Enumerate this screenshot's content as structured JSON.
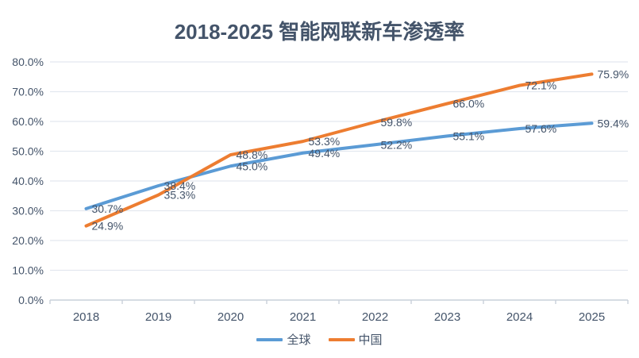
{
  "chart_data": {
    "type": "line",
    "title": "2018-2025 智能网联新车渗透率",
    "categories": [
      "2018",
      "2019",
      "2020",
      "2021",
      "2022",
      "2023",
      "2024",
      "2025"
    ],
    "series": [
      {
        "name": "全球",
        "color": "#5B9BD5",
        "values": [
          30.7,
          38.4,
          45.0,
          49.4,
          52.2,
          55.1,
          57.6,
          59.4
        ],
        "labels": [
          "30.7%",
          "38.4%",
          "45.0%",
          "49.4%",
          "52.2%",
          "55.1%",
          "57.6%",
          "59.4%"
        ]
      },
      {
        "name": "中国",
        "color": "#ED7D31",
        "values": [
          24.9,
          35.3,
          48.8,
          53.3,
          59.8,
          66.0,
          72.1,
          75.9
        ],
        "labels": [
          "24.9%",
          "35.3%",
          "48.8%",
          "53.3%",
          "59.8%",
          "66.0%",
          "72.1%",
          "75.9%"
        ]
      }
    ],
    "ylim": [
      0,
      80
    ],
    "ytick_step": 10,
    "ytick_labels": [
      "0.0%",
      "10.0%",
      "20.0%",
      "30.0%",
      "40.0%",
      "50.0%",
      "60.0%",
      "70.0%",
      "80.0%"
    ],
    "grid": true,
    "legend_position": "bottom",
    "data_labels": true,
    "text_color": "#44546A",
    "gridline_color": "#E3E8EF",
    "axis_color": "#C9D0DA"
  }
}
